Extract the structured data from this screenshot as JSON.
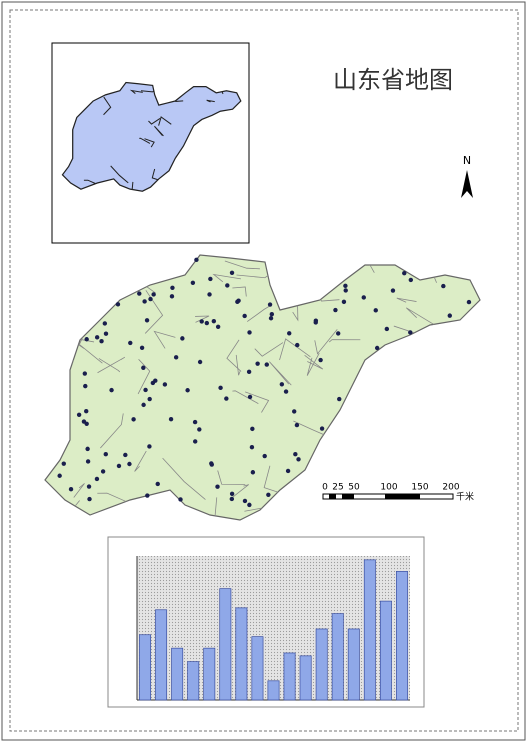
{
  "title": "山东省地图",
  "north_arrow": "N",
  "scale_bar": {
    "labels": [
      "0",
      "25",
      "50",
      "100",
      "150",
      "200"
    ],
    "unit": "千米"
  },
  "chart_data": {
    "type": "bar",
    "values": [
      68,
      94,
      54,
      40,
      54,
      116,
      96,
      66,
      20,
      49,
      46,
      74,
      90,
      74,
      146,
      103,
      134
    ],
    "color": "#8fa8e8",
    "ylim": [
      0,
      150
    ]
  }
}
